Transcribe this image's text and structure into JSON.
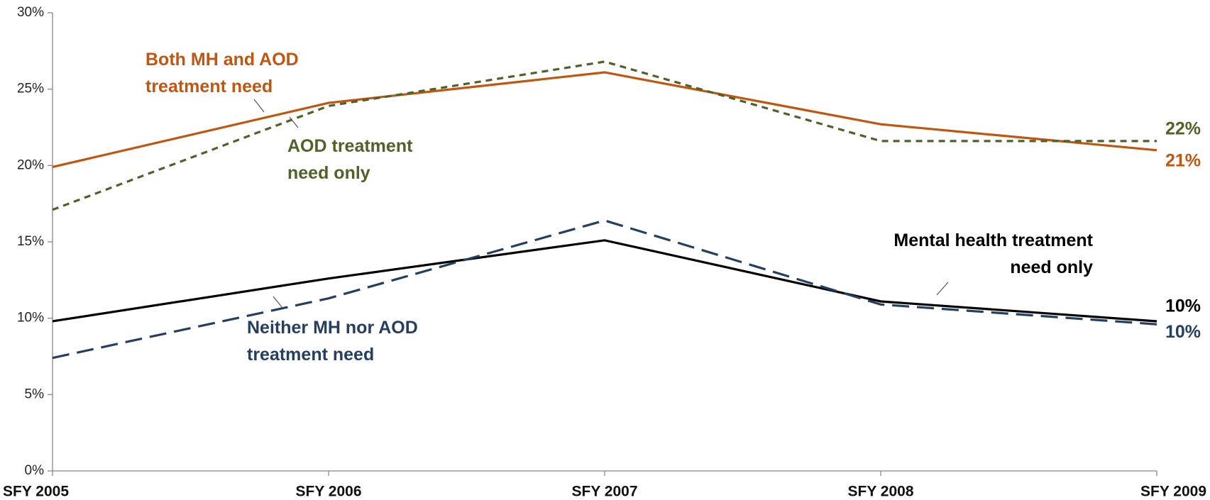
{
  "chart_data": {
    "type": "line",
    "categories": [
      "SFY 2005",
      "SFY 2006",
      "SFY 2007",
      "SFY 2008",
      "SFY 2009"
    ],
    "series": [
      {
        "name": "Both MH and AOD treatment need",
        "color": "#c0560f",
        "dash": "solid",
        "values": [
          19.9,
          24.1,
          26.1,
          22.7,
          21.0
        ],
        "value_labels": [
          null,
          null,
          null,
          null,
          "21%"
        ]
      },
      {
        "name": "AOD treatment need only",
        "color": "#4f6228",
        "dash": "short",
        "values": [
          17.1,
          23.9,
          26.8,
          21.6,
          21.6
        ],
        "value_labels": [
          null,
          null,
          null,
          null,
          "22%"
        ]
      },
      {
        "name": "Mental health treatment need only",
        "color": "#000000",
        "dash": "solid",
        "values": [
          9.8,
          12.6,
          15.1,
          11.1,
          9.8
        ],
        "value_labels": [
          null,
          null,
          null,
          null,
          "10%"
        ]
      },
      {
        "name": "Neither MH nor AOD treatment need",
        "color": "#243f60",
        "dash": "long",
        "values": [
          7.4,
          11.3,
          16.4,
          10.9,
          9.6
        ],
        "value_labels": [
          null,
          null,
          null,
          null,
          "10%"
        ]
      }
    ],
    "ylim": [
      0,
      30
    ],
    "yticks": [
      {
        "value": 0,
        "label": "0%"
      },
      {
        "value": 5,
        "label": "5%"
      },
      {
        "value": 10,
        "label": "10%"
      },
      {
        "value": 15,
        "label": "15%"
      },
      {
        "value": 20,
        "label": "20%"
      },
      {
        "value": 25,
        "label": "25%"
      },
      {
        "value": 30,
        "label": "30%"
      }
    ],
    "grid": false
  }
}
